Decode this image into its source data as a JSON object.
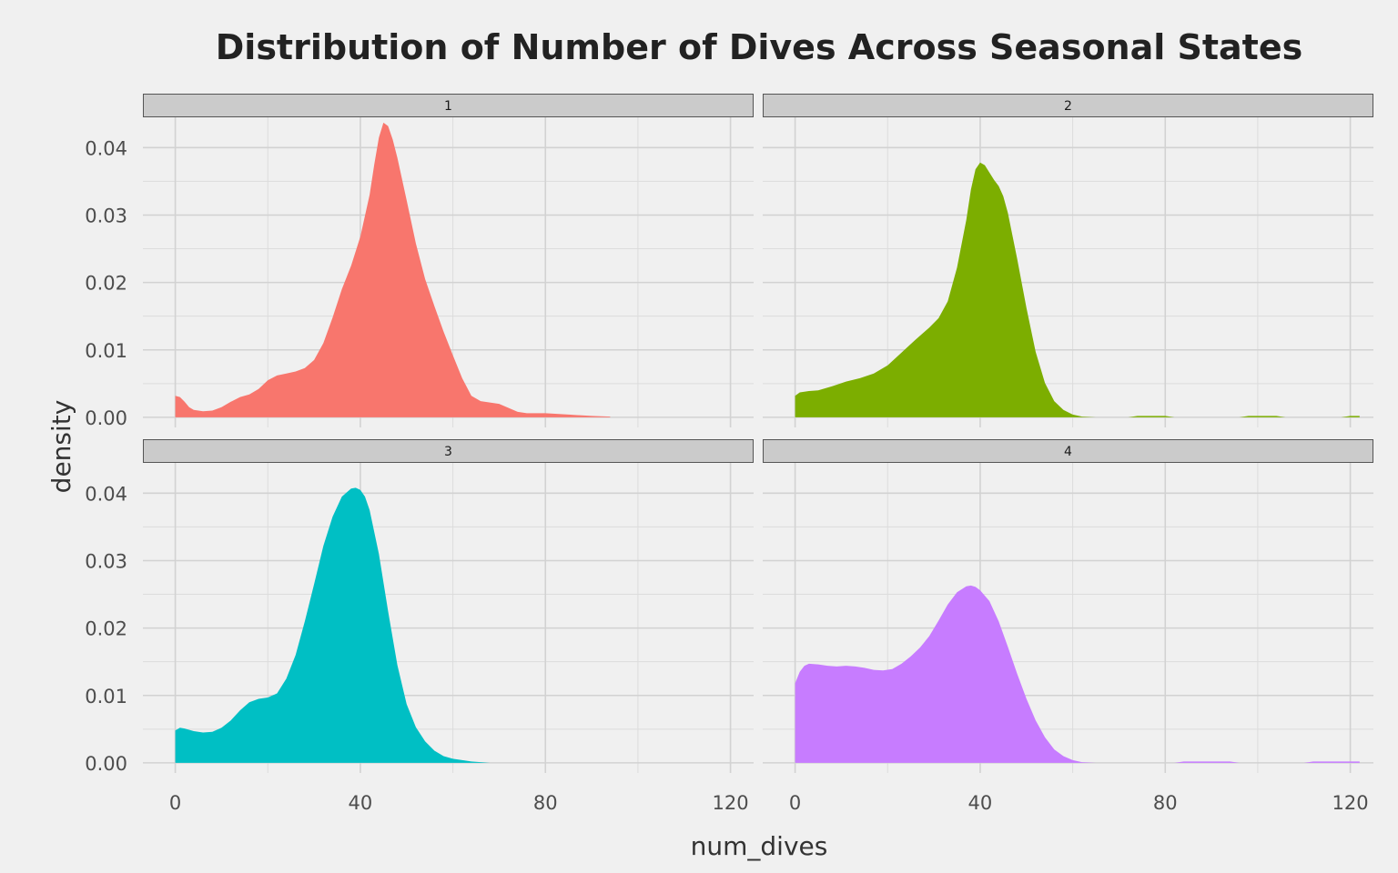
{
  "chart_data": {
    "type": "area",
    "title": "Distribution of Number of Dives Across Seasonal States",
    "xlabel": "num_dives",
    "ylabel": "density",
    "xlim": [
      -7,
      125
    ],
    "ylim": [
      -0.0015,
      0.0445
    ],
    "x_ticks": [
      "0",
      "40",
      "80",
      "120"
    ],
    "x_tick_values": [
      0,
      40,
      80,
      120
    ],
    "y_ticks": [
      "0.00",
      "0.01",
      "0.02",
      "0.03",
      "0.04"
    ],
    "y_tick_values": [
      0,
      0.01,
      0.02,
      0.03,
      0.04
    ],
    "grid": true,
    "legend": "none",
    "facets": [
      {
        "label": "1",
        "color": "#F8766D",
        "points": [
          [
            0,
            0.0032
          ],
          [
            1,
            0.003
          ],
          [
            2,
            0.0023
          ],
          [
            3,
            0.0015
          ],
          [
            4,
            0.0011
          ],
          [
            6,
            0.0009
          ],
          [
            8,
            0.001
          ],
          [
            10,
            0.0015
          ],
          [
            12,
            0.0023
          ],
          [
            14,
            0.003
          ],
          [
            16,
            0.0034
          ],
          [
            18,
            0.0042
          ],
          [
            20,
            0.0055
          ],
          [
            22,
            0.0062
          ],
          [
            24,
            0.0065
          ],
          [
            26,
            0.0068
          ],
          [
            28,
            0.0073
          ],
          [
            30,
            0.0085
          ],
          [
            32,
            0.011
          ],
          [
            34,
            0.0148
          ],
          [
            36,
            0.019
          ],
          [
            38,
            0.0225
          ],
          [
            40,
            0.0268
          ],
          [
            42,
            0.033
          ],
          [
            43,
            0.0375
          ],
          [
            44,
            0.0415
          ],
          [
            45,
            0.0437
          ],
          [
            46,
            0.0432
          ],
          [
            47,
            0.0412
          ],
          [
            48,
            0.0385
          ],
          [
            50,
            0.0322
          ],
          [
            52,
            0.0258
          ],
          [
            54,
            0.0205
          ],
          [
            56,
            0.0165
          ],
          [
            58,
            0.0127
          ],
          [
            60,
            0.0092
          ],
          [
            62,
            0.0058
          ],
          [
            64,
            0.0032
          ],
          [
            66,
            0.0024
          ],
          [
            68,
            0.0022
          ],
          [
            70,
            0.002
          ],
          [
            72,
            0.0014
          ],
          [
            74,
            0.0008
          ],
          [
            76,
            0.0006
          ],
          [
            80,
            0.0006
          ],
          [
            85,
            0.0004
          ],
          [
            90,
            0.0002
          ],
          [
            94,
            0.0001
          ]
        ]
      },
      {
        "label": "2",
        "color": "#7CAE00",
        "points": [
          [
            0,
            0.0032
          ],
          [
            1,
            0.0037
          ],
          [
            3,
            0.0039
          ],
          [
            5,
            0.004
          ],
          [
            8,
            0.0046
          ],
          [
            11,
            0.0053
          ],
          [
            14,
            0.0058
          ],
          [
            17,
            0.0065
          ],
          [
            20,
            0.0077
          ],
          [
            23,
            0.0096
          ],
          [
            26,
            0.0115
          ],
          [
            29,
            0.0133
          ],
          [
            31,
            0.0147
          ],
          [
            33,
            0.0172
          ],
          [
            35,
            0.0222
          ],
          [
            37,
            0.0293
          ],
          [
            38,
            0.0338
          ],
          [
            39,
            0.0368
          ],
          [
            40,
            0.0378
          ],
          [
            41,
            0.0374
          ],
          [
            42,
            0.0363
          ],
          [
            43,
            0.0352
          ],
          [
            44,
            0.0343
          ],
          [
            45,
            0.0328
          ],
          [
            46,
            0.0303
          ],
          [
            48,
            0.0235
          ],
          [
            50,
            0.0162
          ],
          [
            52,
            0.0097
          ],
          [
            54,
            0.0051
          ],
          [
            56,
            0.0024
          ],
          [
            58,
            0.0011
          ],
          [
            60,
            0.0004
          ],
          [
            62,
            0.0001
          ],
          [
            65,
            0.0
          ],
          [
            72,
            0.0
          ],
          [
            74,
            0.0002
          ],
          [
            80,
            0.0002
          ],
          [
            82,
            0.0
          ],
          [
            96,
            0.0
          ],
          [
            98,
            0.0002
          ],
          [
            104,
            0.0002
          ],
          [
            106,
            0.0
          ],
          [
            118,
            0.0
          ],
          [
            120,
            0.0002
          ],
          [
            122,
            0.0002
          ]
        ]
      },
      {
        "label": "3",
        "color": "#00BFC4",
        "points": [
          [
            0,
            0.0048
          ],
          [
            1,
            0.0052
          ],
          [
            2,
            0.0051
          ],
          [
            4,
            0.0047
          ],
          [
            6,
            0.0045
          ],
          [
            8,
            0.0046
          ],
          [
            10,
            0.0052
          ],
          [
            12,
            0.0063
          ],
          [
            14,
            0.0078
          ],
          [
            16,
            0.009
          ],
          [
            18,
            0.0095
          ],
          [
            20,
            0.0097
          ],
          [
            22,
            0.0103
          ],
          [
            24,
            0.0125
          ],
          [
            26,
            0.016
          ],
          [
            28,
            0.021
          ],
          [
            30,
            0.0265
          ],
          [
            32,
            0.0322
          ],
          [
            34,
            0.0365
          ],
          [
            36,
            0.0395
          ],
          [
            38,
            0.0407
          ],
          [
            39,
            0.0408
          ],
          [
            40,
            0.0405
          ],
          [
            41,
            0.0395
          ],
          [
            42,
            0.0375
          ],
          [
            44,
            0.031
          ],
          [
            46,
            0.0225
          ],
          [
            48,
            0.0145
          ],
          [
            50,
            0.0087
          ],
          [
            52,
            0.0053
          ],
          [
            54,
            0.0032
          ],
          [
            56,
            0.0018
          ],
          [
            58,
            0.001
          ],
          [
            60,
            0.0006
          ],
          [
            62,
            0.0004
          ],
          [
            64,
            0.0002
          ],
          [
            66,
            0.0001
          ],
          [
            68,
            0.0
          ]
        ]
      },
      {
        "label": "4",
        "color": "#C77CFF",
        "points": [
          [
            0,
            0.0118
          ],
          [
            1,
            0.0135
          ],
          [
            2,
            0.0144
          ],
          [
            3,
            0.0147
          ],
          [
            5,
            0.0146
          ],
          [
            7,
            0.0144
          ],
          [
            9,
            0.0143
          ],
          [
            11,
            0.0144
          ],
          [
            13,
            0.0143
          ],
          [
            15,
            0.0141
          ],
          [
            17,
            0.0138
          ],
          [
            19,
            0.0137
          ],
          [
            21,
            0.0139
          ],
          [
            23,
            0.0147
          ],
          [
            25,
            0.0158
          ],
          [
            27,
            0.0171
          ],
          [
            29,
            0.0188
          ],
          [
            31,
            0.0211
          ],
          [
            33,
            0.0235
          ],
          [
            35,
            0.0253
          ],
          [
            37,
            0.0262
          ],
          [
            38,
            0.0263
          ],
          [
            39,
            0.0261
          ],
          [
            40,
            0.0256
          ],
          [
            42,
            0.024
          ],
          [
            44,
            0.021
          ],
          [
            46,
            0.0172
          ],
          [
            48,
            0.0132
          ],
          [
            50,
            0.0095
          ],
          [
            52,
            0.0063
          ],
          [
            54,
            0.0038
          ],
          [
            56,
            0.002
          ],
          [
            58,
            0.001
          ],
          [
            60,
            0.0004
          ],
          [
            62,
            0.0001
          ],
          [
            65,
            0.0
          ],
          [
            82,
            0.0
          ],
          [
            84,
            0.0002
          ],
          [
            94,
            0.0002
          ],
          [
            96,
            0.0
          ],
          [
            110,
            0.0
          ],
          [
            112,
            0.0002
          ],
          [
            122,
            0.0002
          ]
        ]
      }
    ]
  }
}
